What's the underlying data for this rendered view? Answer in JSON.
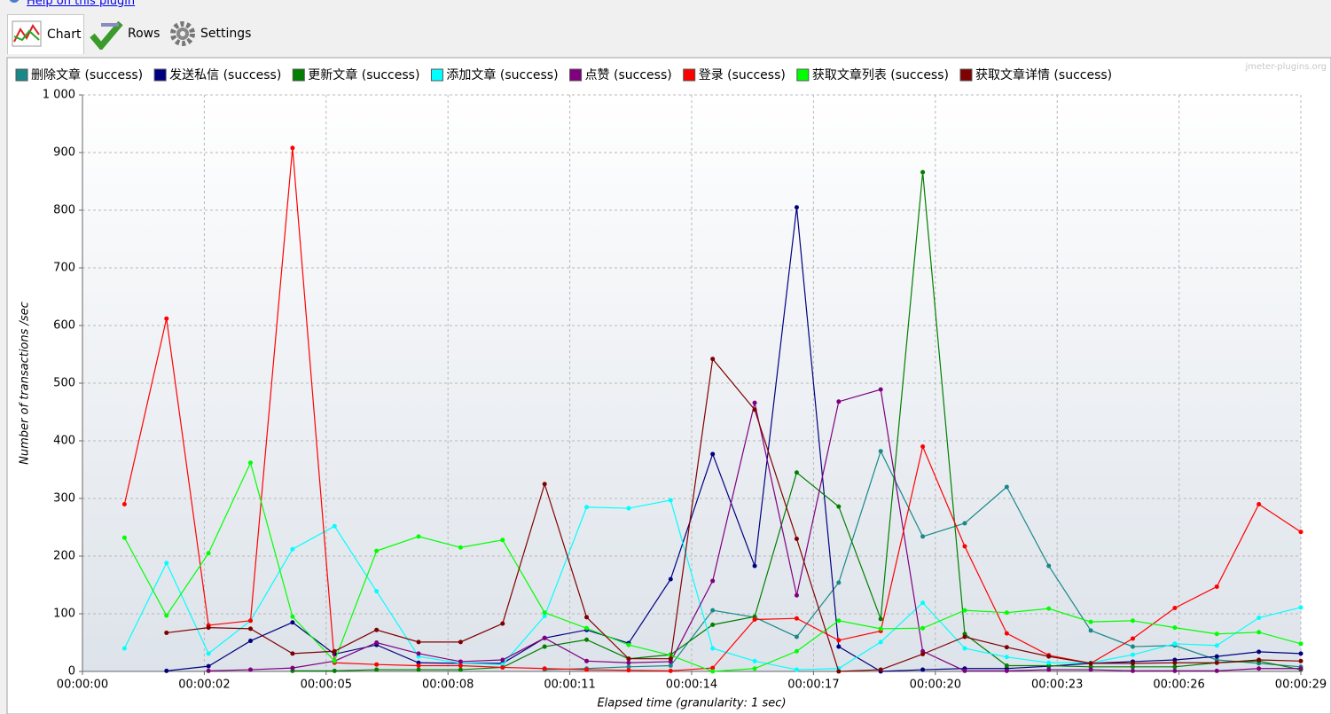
{
  "help_link": "Help on this plugin",
  "tabs": [
    "Chart",
    "Rows",
    "Settings"
  ],
  "watermark": "jmeter-plugins.org",
  "chart_data": {
    "type": "line",
    "x_label": "Elapsed time (granularity: 1 sec)",
    "y_label": "Number of transactions /sec",
    "x": [
      1,
      2,
      3,
      4,
      5,
      6,
      7,
      8,
      9,
      10,
      11,
      12,
      13,
      14,
      15,
      16,
      17,
      18,
      19,
      20,
      21,
      22,
      23,
      24,
      25,
      26,
      27,
      28,
      29
    ],
    "xlim": [
      0,
      29
    ],
    "xticks": [
      {
        "value": 0,
        "label": "00:00:00"
      },
      {
        "value": 2.9,
        "label": "00:00:02"
      },
      {
        "value": 5.8,
        "label": "00:00:05"
      },
      {
        "value": 8.7,
        "label": "00:00:08"
      },
      {
        "value": 11.6,
        "label": "00:00:11"
      },
      {
        "value": 14.5,
        "label": "00:00:14"
      },
      {
        "value": 17.4,
        "label": "00:00:17"
      },
      {
        "value": 20.3,
        "label": "00:00:20"
      },
      {
        "value": 23.2,
        "label": "00:00:23"
      },
      {
        "value": 26.1,
        "label": "00:00:26"
      },
      {
        "value": 29,
        "label": "00:00:29"
      }
    ],
    "ylim": [
      0,
      1000
    ],
    "yticks": [
      0,
      100,
      200,
      300,
      400,
      500,
      600,
      700,
      800,
      900,
      {
        "value": 1000,
        "label": "1 000"
      }
    ],
    "grid": true,
    "series": [
      {
        "name": "删除文章 (success)",
        "color": "#188888",
        "values": [
          null,
          null,
          null,
          null,
          null,
          null,
          null,
          null,
          null,
          null,
          3,
          5,
          8,
          10,
          106,
          94,
          60,
          154,
          382,
          234,
          257,
          320,
          183,
          71,
          43,
          45,
          20,
          14,
          8
        ]
      },
      {
        "name": "发送私信 (success)",
        "color": "#00007f",
        "values": [
          null,
          1,
          9,
          53,
          85,
          30,
          46,
          15,
          14,
          14,
          58,
          72,
          49,
          160,
          377,
          183,
          805,
          43,
          0,
          3,
          5,
          5,
          9,
          14,
          17,
          20,
          26,
          34,
          31
        ]
      },
      {
        "name": "更新文章 (success)",
        "color": "#007f00",
        "values": [
          null,
          null,
          null,
          null,
          1,
          1,
          3,
          3,
          3,
          7,
          43,
          55,
          22,
          29,
          81,
          95,
          345,
          286,
          91,
          866,
          65,
          10,
          10,
          8,
          8,
          8,
          15,
          18,
          3
        ]
      },
      {
        "name": "添加文章 (success)",
        "color": "#00ffff",
        "values": [
          40,
          188,
          31,
          88,
          212,
          252,
          139,
          26,
          14,
          12,
          96,
          285,
          283,
          297,
          40,
          18,
          3,
          5,
          51,
          119,
          40,
          25,
          15,
          15,
          29,
          48,
          45,
          93,
          111
        ]
      },
      {
        "name": "点赞 (success)",
        "color": "#7f007f",
        "values": [
          null,
          null,
          1,
          3,
          6,
          18,
          50,
          31,
          17,
          20,
          58,
          18,
          15,
          17,
          157,
          466,
          132,
          468,
          489,
          35,
          1,
          1,
          3,
          3,
          1,
          1,
          1,
          5,
          5
        ]
      },
      {
        "name": "登录 (success)",
        "color": "#ff0000",
        "values": [
          290,
          612,
          80,
          88,
          908,
          15,
          12,
          10,
          10,
          7,
          5,
          3,
          2,
          1,
          6,
          90,
          92,
          54,
          70,
          390,
          217,
          66,
          28,
          14,
          57,
          110,
          147,
          290,
          242
        ]
      },
      {
        "name": "获取文章列表 (success)",
        "color": "#00ff00",
        "values": [
          232,
          97,
          205,
          362,
          95,
          18,
          209,
          234,
          215,
          228,
          102,
          75,
          46,
          28,
          0,
          5,
          35,
          88,
          74,
          75,
          106,
          102,
          109,
          86,
          88,
          76,
          65,
          68,
          48
        ]
      },
      {
        "name": "获取文章详情 (success)",
        "color": "#7f0000",
        "values": [
          null,
          67,
          76,
          74,
          31,
          35,
          72,
          51,
          51,
          83,
          325,
          94,
          22,
          22,
          542,
          454,
          230,
          0,
          3,
          30,
          60,
          42,
          26,
          14,
          14,
          15,
          15,
          20,
          18
        ]
      }
    ]
  }
}
